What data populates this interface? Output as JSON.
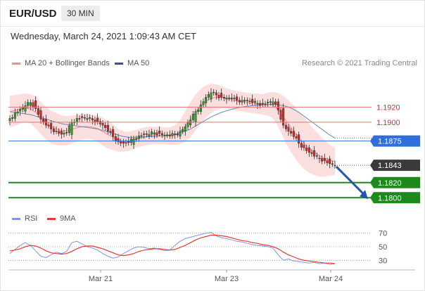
{
  "header": {
    "symbol": "EUR/USD",
    "timeframe": "30 MIN",
    "datetime": "Wednesday, March 24, 2021 1:09:43 AM CET"
  },
  "legend": {
    "bollinger": "MA 20 + Bollinger Bands",
    "ma50": "MA 50",
    "credit": "Research © 2021 Trading Central"
  },
  "rsi_legend": {
    "rsi": "RSI",
    "ma9": "9MA"
  },
  "colors": {
    "up": "#2ca02c",
    "down": "#d62728",
    "resistance": "#e57373",
    "pivot": "#2f6fdb",
    "support": "#1e8a1e",
    "current": "#3a3a3a",
    "arrow": "#2456a8",
    "band": "#f9c9c9",
    "ma20": "#ef8f8f",
    "ma50": "#6e88b8",
    "rsi": "#7f97e0",
    "rsi_ma": "#e53935"
  },
  "chart_data": [
    {
      "type": "candlestick",
      "x_ticks": [
        "Mar 21",
        "Mar 23",
        "Mar 24"
      ],
      "ylim": [
        1.179,
        1.1965
      ],
      "levels": [
        {
          "value": 1.192,
          "label": "1.1920",
          "kind": "resistance"
        },
        {
          "value": 1.19,
          "label": "1.1900",
          "kind": "resistance"
        },
        {
          "value": 1.1875,
          "label": "1.1875",
          "kind": "pivot"
        },
        {
          "value": 1.1843,
          "label": "1.1843",
          "kind": "current"
        },
        {
          "value": 1.182,
          "label": "1.1820",
          "kind": "support"
        },
        {
          "value": 1.18,
          "label": "1.1800",
          "kind": "support"
        }
      ],
      "close_path": [
        1.1905,
        1.1912,
        1.1917,
        1.1922,
        1.1926,
        1.1918,
        1.1904,
        1.1896,
        1.1891,
        1.1888,
        1.1884,
        1.1886,
        1.19,
        1.1905,
        1.1906,
        1.1905,
        1.1903,
        1.1901,
        1.1896,
        1.1888,
        1.1881,
        1.1874,
        1.1872,
        1.1873,
        1.1878,
        1.1882,
        1.1884,
        1.1884,
        1.1886,
        1.1885,
        1.1883,
        1.1882,
        1.1884,
        1.1888,
        1.1894,
        1.1903,
        1.1914,
        1.1923,
        1.1933,
        1.1939,
        1.1936,
        1.1933,
        1.1932,
        1.1931,
        1.1929,
        1.1929,
        1.1928,
        1.1926,
        1.1925,
        1.1924,
        1.1926,
        1.1927,
        1.1916,
        1.1896,
        1.1888,
        1.1881,
        1.1872,
        1.1866,
        1.186,
        1.1855,
        1.1852,
        1.1849,
        1.1845,
        1.1843
      ],
      "bb_upper": [
        1.1935,
        1.1936,
        1.1937,
        1.1938,
        1.1937,
        1.1934,
        1.1927,
        1.192,
        1.1915,
        1.1912,
        1.1909,
        1.1908,
        1.1909,
        1.191,
        1.1911,
        1.1911,
        1.191,
        1.1909,
        1.1906,
        1.1902,
        1.1897,
        1.1891,
        1.1888,
        1.1887,
        1.1889,
        1.1891,
        1.1893,
        1.1894,
        1.1894,
        1.1894,
        1.1893,
        1.1893,
        1.1896,
        1.1903,
        1.1915,
        1.1927,
        1.1937,
        1.1944,
        1.1949,
        1.1951,
        1.195,
        1.1948,
        1.1945,
        1.1943,
        1.1941,
        1.194,
        1.1939,
        1.1938,
        1.1938,
        1.1937,
        1.1939,
        1.194,
        1.1939,
        1.1935,
        1.1929,
        1.1922,
        1.1914,
        1.1906,
        1.1898,
        1.189,
        1.1883,
        1.1876,
        1.187,
        1.1866
      ],
      "bb_lower": [
        1.1893,
        1.1895,
        1.1898,
        1.19,
        1.1898,
        1.1892,
        1.1884,
        1.1877,
        1.1872,
        1.187,
        1.1869,
        1.1869,
        1.1872,
        1.1875,
        1.1877,
        1.1878,
        1.1877,
        1.1874,
        1.1869,
        1.1865,
        1.1863,
        1.1861,
        1.1861,
        1.1862,
        1.1865,
        1.1867,
        1.1869,
        1.187,
        1.1871,
        1.1871,
        1.1871,
        1.187,
        1.187,
        1.1871,
        1.1874,
        1.188,
        1.1889,
        1.1898,
        1.1906,
        1.1912,
        1.1916,
        1.1918,
        1.1918,
        1.1917,
        1.1915,
        1.1914,
        1.1913,
        1.1912,
        1.1911,
        1.191,
        1.1909,
        1.1905,
        1.1894,
        1.1879,
        1.1866,
        1.1855,
        1.1845,
        1.1838,
        1.1833,
        1.183,
        1.1828,
        1.1828,
        1.1829,
        1.183
      ],
      "ma50": [
        1.1914,
        1.1913,
        1.1912,
        1.1911,
        1.191,
        1.1908,
        1.1906,
        1.1904,
        1.1902,
        1.19,
        1.1898,
        1.1897,
        1.1896,
        1.1895,
        1.1894,
        1.1893,
        1.1892,
        1.1891,
        1.1889,
        1.1887,
        1.1885,
        1.1883,
        1.1881,
        1.188,
        1.188,
        1.188,
        1.188,
        1.1881,
        1.1881,
        1.1882,
        1.1882,
        1.1883,
        1.1884,
        1.1886,
        1.1888,
        1.1891,
        1.1895,
        1.1899,
        1.1903,
        1.1907,
        1.191,
        1.1913,
        1.1915,
        1.1917,
        1.1919,
        1.192,
        1.1921,
        1.1922,
        1.1922,
        1.1923,
        1.1923,
        1.1924,
        1.1923,
        1.1922,
        1.192,
        1.1917,
        1.1913,
        1.1908,
        1.1903,
        1.1898,
        1.1893,
        1.1888,
        1.1883,
        1.1879
      ],
      "forecast_target": 1.18
    },
    {
      "type": "line",
      "name": "RSI",
      "ylim": [
        20,
        80
      ],
      "y_ticks": [
        70,
        50,
        30
      ],
      "rsi": [
        40,
        46,
        52,
        56,
        52,
        44,
        36,
        34,
        38,
        42,
        40,
        43,
        56,
        58,
        54,
        50,
        48,
        45,
        40,
        36,
        33,
        35,
        40,
        44,
        48,
        50,
        49,
        47,
        48,
        46,
        44,
        45,
        52,
        58,
        62,
        64,
        66,
        68,
        70,
        71,
        66,
        63,
        62,
        60,
        58,
        57,
        55,
        53,
        52,
        51,
        50,
        48,
        38,
        30,
        32,
        29,
        28,
        27,
        26,
        27,
        25,
        26,
        24,
        25
      ],
      "rsi_ma": [
        44,
        45,
        47,
        50,
        52,
        51,
        48,
        44,
        41,
        40,
        39,
        40,
        43,
        47,
        50,
        51,
        51,
        49,
        47,
        44,
        41,
        38,
        37,
        38,
        40,
        43,
        45,
        46,
        47,
        47,
        46,
        45,
        46,
        49,
        52,
        56,
        60,
        63,
        65,
        67,
        67,
        66,
        65,
        63,
        61,
        59,
        58,
        56,
        55,
        53,
        52,
        50,
        47,
        42,
        38,
        35,
        32,
        30,
        29,
        28,
        27,
        26,
        26,
        25
      ]
    }
  ]
}
